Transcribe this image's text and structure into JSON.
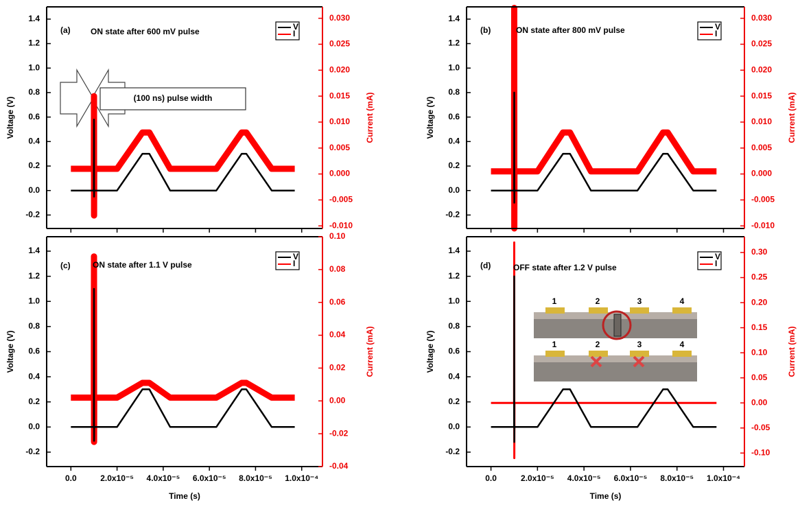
{
  "chart_data": [
    {
      "type": "line",
      "panel_label": "(a)",
      "title": "ON state after 600 mV pulse",
      "annotation": "(100 ns) pulse width",
      "ylabel": "Voltage (V)",
      "y2label": "Current (mA)",
      "x": [
        0,
        9.95e-06,
        1e-05,
        1.005e-05,
        1.01e-05,
        2e-05,
        3.1e-05,
        3.4e-05,
        4.3e-05,
        6.3e-05,
        7.4e-05,
        7.6e-05,
        8.7e-05,
        9.7e-05
      ],
      "series": [
        {
          "name": "V",
          "color": "#000000",
          "values": [
            0,
            0,
            0.58,
            -0.05,
            0,
            0,
            0.3,
            0.3,
            0,
            0,
            0.3,
            0.3,
            0,
            0
          ]
        },
        {
          "name": "I",
          "color": "#ff0000",
          "axis": "y2",
          "values": [
            0.001,
            0.001,
            0.015,
            -0.008,
            0.001,
            0.001,
            0.008,
            0.008,
            0.001,
            0.001,
            0.008,
            0.008,
            0.001,
            0.001
          ]
        }
      ],
      "xlim": [
        -1.05e-05,
        0.000109
      ],
      "ylim": [
        -0.31,
        1.5
      ],
      "y2lim": [
        -0.0105,
        0.0322
      ],
      "xticks": [
        0,
        2e-05,
        4e-05,
        6e-05,
        8e-05,
        0.0001
      ],
      "yticks": [
        -0.2,
        {
          "value": 0,
          "label": "0.0"
        },
        0.2,
        0.4,
        0.6,
        0.8,
        {
          "value": 1,
          "label": "1.0"
        },
        1.2,
        1.4
      ],
      "y2ticks": [
        {
          "value": -0.01,
          "label": "-0.010"
        },
        {
          "value": -0.005,
          "label": "-0.005"
        },
        {
          "value": 0,
          "label": "0.000"
        },
        {
          "value": 0.005,
          "label": "0.005"
        },
        {
          "value": 0.01,
          "label": "0.010"
        },
        {
          "value": 0.015,
          "label": "0.015"
        },
        {
          "value": 0.02,
          "label": "0.020"
        },
        {
          "value": 0.025,
          "label": "0.025"
        },
        {
          "value": 0.03,
          "label": "0.030"
        }
      ]
    },
    {
      "type": "line",
      "panel_label": "(b)",
      "title": "ON state after 800 mV pulse",
      "ylabel": "Voltage (V)",
      "y2label": "Current (mA)",
      "x": [
        0,
        9.95e-06,
        1e-05,
        1.005e-05,
        1.01e-05,
        2e-05,
        3.1e-05,
        3.4e-05,
        4.3e-05,
        6.3e-05,
        7.4e-05,
        7.6e-05,
        8.7e-05,
        9.7e-05
      ],
      "series": [
        {
          "name": "V",
          "color": "#000000",
          "values": [
            0,
            0,
            0.8,
            -0.1,
            0,
            0,
            0.3,
            0.3,
            0,
            0,
            0.3,
            0.3,
            0,
            0
          ]
        },
        {
          "name": "I",
          "color": "#ff0000",
          "axis": "y2",
          "values": [
            0.0005,
            0.0005,
            0.032,
            -0.0105,
            0.0005,
            0.0005,
            0.008,
            0.008,
            0.0005,
            0.0005,
            0.008,
            0.008,
            0.0005,
            0.0005
          ]
        }
      ],
      "xlim": [
        -1.05e-05,
        0.000109
      ],
      "ylim": [
        -0.31,
        1.5
      ],
      "y2lim": [
        -0.0105,
        0.0322
      ],
      "xticks": [
        0,
        2e-05,
        4e-05,
        6e-05,
        8e-05,
        0.0001
      ],
      "yticks": [
        -0.2,
        {
          "value": 0,
          "label": "0.0"
        },
        0.2,
        0.4,
        0.6,
        0.8,
        {
          "value": 1,
          "label": "1.0"
        },
        1.2,
        1.4
      ],
      "y2ticks": [
        {
          "value": -0.01,
          "label": "-0.010"
        },
        {
          "value": -0.005,
          "label": "-0.005"
        },
        {
          "value": 0,
          "label": "0.000"
        },
        {
          "value": 0.005,
          "label": "0.005"
        },
        {
          "value": 0.01,
          "label": "0.010"
        },
        {
          "value": 0.015,
          "label": "0.015"
        },
        {
          "value": 0.02,
          "label": "0.020"
        },
        {
          "value": 0.025,
          "label": "0.025"
        },
        {
          "value": 0.03,
          "label": "0.030"
        }
      ]
    },
    {
      "type": "line",
      "panel_label": "(c)",
      "title": "ON state after 1.1 V pulse",
      "ylabel": "Voltage (V)",
      "y2label": "Current (mA)",
      "xlabel": "Time (s)",
      "x": [
        0,
        9.95e-06,
        1e-05,
        1.005e-05,
        1.01e-05,
        2e-05,
        3.1e-05,
        3.4e-05,
        4.3e-05,
        6.3e-05,
        7.4e-05,
        7.6e-05,
        8.7e-05,
        9.7e-05
      ],
      "series": [
        {
          "name": "V",
          "color": "#000000",
          "values": [
            0,
            0,
            1.1,
            -0.11,
            0,
            0,
            0.3,
            0.3,
            0,
            0,
            0.3,
            0.3,
            0,
            0
          ]
        },
        {
          "name": "I",
          "color": "#ff0000",
          "axis": "y2",
          "values": [
            0.002,
            0.002,
            0.088,
            -0.025,
            0.002,
            0.002,
            0.011,
            0.011,
            0.002,
            0.002,
            0.011,
            0.011,
            0.002,
            0.002
          ]
        }
      ],
      "xlim": [
        -1.05e-05,
        0.000109
      ],
      "ylim": [
        -0.315,
        1.515
      ],
      "y2lim": [
        -0.04,
        0.1
      ],
      "xticks": [
        {
          "value": 0,
          "label": "0.0"
        },
        {
          "value": 2e-05,
          "label": "2.0x10⁻⁵"
        },
        {
          "value": 4e-05,
          "label": "4.0x10⁻⁵"
        },
        {
          "value": 6e-05,
          "label": "6.0x10⁻⁵"
        },
        {
          "value": 8e-05,
          "label": "8.0x10⁻⁵"
        },
        {
          "value": 0.0001,
          "label": "1.0x10⁻⁴"
        }
      ],
      "yticks": [
        -0.2,
        {
          "value": 0,
          "label": "0.0"
        },
        0.2,
        0.4,
        0.6,
        0.8,
        {
          "value": 1,
          "label": "1.0"
        },
        1.2,
        1.4
      ],
      "y2ticks": [
        -0.04,
        -0.02,
        {
          "value": 0,
          "label": "0.00"
        },
        0.02,
        0.04,
        0.06,
        0.08,
        {
          "value": 0.1,
          "label": "0.10"
        }
      ]
    },
    {
      "type": "line",
      "panel_label": "(d)",
      "title": "OFF state after 1.2 V pulse",
      "ylabel": "Voltage (V)",
      "y2label": "Current (mA)",
      "xlabel": "Time (s)",
      "inset_labels": [
        "1",
        "2",
        "3",
        "4"
      ],
      "x": [
        0,
        9.95e-06,
        1e-05,
        1.005e-05,
        1.01e-05,
        2e-05,
        3.1e-05,
        3.4e-05,
        4.3e-05,
        6.3e-05,
        7.4e-05,
        7.6e-05,
        8.7e-05,
        9.7e-05
      ],
      "series": [
        {
          "name": "V",
          "color": "#000000",
          "values": [
            0,
            0,
            1.2,
            -0.12,
            0,
            0,
            0.3,
            0.3,
            0,
            0,
            0.3,
            0.3,
            0,
            0
          ]
        },
        {
          "name": "I",
          "color": "#ff0000",
          "axis": "y2",
          "values": [
            0,
            0,
            0.32,
            -0.11,
            0,
            0,
            0,
            0,
            0,
            0,
            0,
            0,
            0,
            0
          ]
        }
      ],
      "xlim": [
        -1.05e-05,
        0.000109
      ],
      "ylim": [
        -0.315,
        1.515
      ],
      "y2lim": [
        -0.127,
        0.3315
      ],
      "xticks": [
        {
          "value": 0,
          "label": "0.0"
        },
        {
          "value": 2e-05,
          "label": "2.0x10⁻⁵"
        },
        {
          "value": 4e-05,
          "label": "4.0x10⁻⁵"
        },
        {
          "value": 6e-05,
          "label": "6.0x10⁻⁵"
        },
        {
          "value": 8e-05,
          "label": "8.0x10⁻⁵"
        },
        {
          "value": 0.0001,
          "label": "1.0x10⁻⁴"
        }
      ],
      "yticks": [
        -0.2,
        {
          "value": 0,
          "label": "0.0"
        },
        0.2,
        0.4,
        0.6,
        0.8,
        {
          "value": 1,
          "label": "1.0"
        },
        1.2,
        1.4
      ],
      "y2ticks": [
        {
          "value": -0.1,
          "label": "-0.10"
        },
        -0.05,
        {
          "value": 0,
          "label": "0.00"
        },
        0.05,
        {
          "value": 0.1,
          "label": "0.10"
        },
        0.15,
        {
          "value": 0.2,
          "label": "0.20"
        },
        0.25,
        {
          "value": 0.3,
          "label": "0.30"
        }
      ]
    }
  ]
}
